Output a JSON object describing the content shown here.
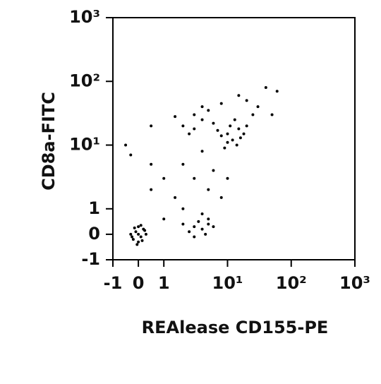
{
  "chart_data": {
    "type": "scatter",
    "x_label": "REAlease CD155-PE",
    "y_label": "CD8a-FITC",
    "scale": "biexponential",
    "color": "#000000",
    "xlim": [
      -1,
      1000
    ],
    "ylim": [
      -1,
      1000
    ],
    "xticks": [
      -1,
      0,
      1,
      {
        "value": 10,
        "label": "10¹"
      },
      {
        "value": 100,
        "label": "10²"
      },
      {
        "value": 1000,
        "label": "10³"
      }
    ],
    "yticks": [
      -1,
      0,
      1,
      {
        "value": 10,
        "label": "10¹"
      },
      {
        "value": 100,
        "label": "10²"
      },
      {
        "value": 1000,
        "label": "10³"
      }
    ],
    "x": [
      0,
      0.1,
      -0.1,
      0.2,
      -0.2,
      0.15,
      -0.15,
      0.3,
      -0.3,
      0,
      0,
      0.25,
      -0.25,
      0.1,
      -0.05,
      3,
      4,
      5,
      3.5,
      4.5,
      2.5,
      6,
      3,
      5,
      2,
      4,
      2,
      3,
      4,
      2.5,
      5,
      3,
      1.5,
      6,
      4,
      10,
      12,
      15,
      8,
      11,
      14,
      18,
      9,
      13,
      20,
      16,
      7,
      10,
      20,
      30,
      40,
      15,
      8,
      50,
      25,
      60,
      2,
      3,
      5,
      1.5,
      4,
      6,
      1,
      8,
      2,
      10,
      -0.5,
      0.5,
      0.5,
      1,
      0.5,
      -0.3
    ],
    "y": [
      0,
      -0.1,
      0.1,
      0.2,
      -0.2,
      -0.25,
      0.25,
      0,
      0,
      0.3,
      -0.3,
      0.15,
      -0.1,
      0.35,
      -0.4,
      0.3,
      0.2,
      0.4,
      0.5,
      0,
      0.1,
      0.3,
      -0.1,
      0.6,
      0.4,
      0.8,
      20,
      30,
      25,
      15,
      35,
      18,
      28,
      22,
      40,
      15,
      12,
      18,
      14,
      20,
      10,
      15,
      9,
      25,
      20,
      13,
      17,
      11,
      50,
      40,
      80,
      60,
      45,
      30,
      30,
      70,
      5,
      3,
      2,
      1.5,
      8,
      4,
      3,
      1.5,
      1,
      3,
      10,
      20,
      2,
      0.6,
      5,
      7
    ]
  }
}
